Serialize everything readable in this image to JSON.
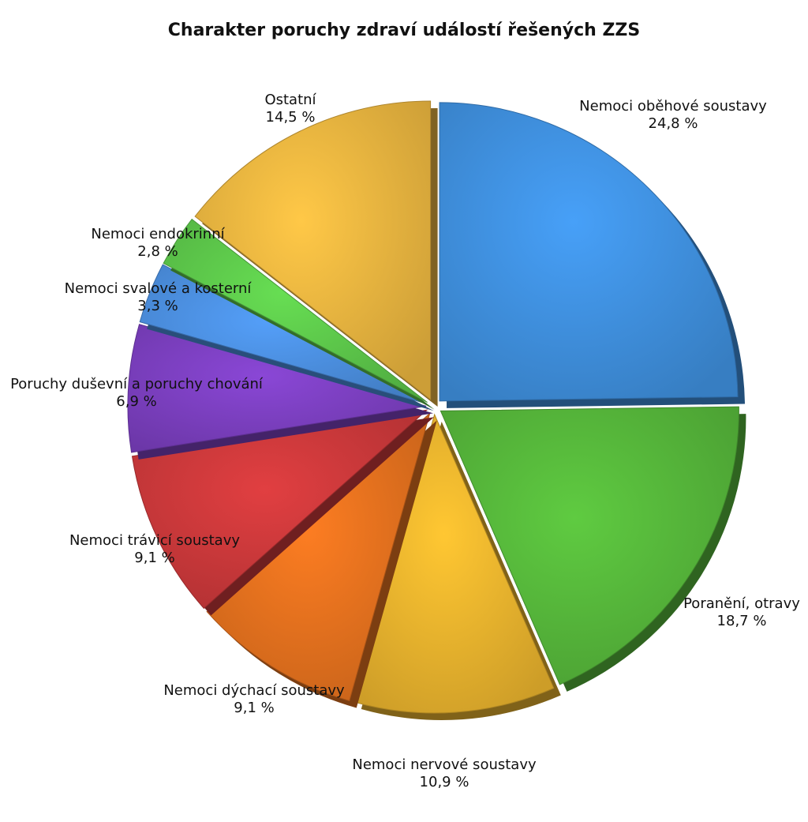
{
  "chart_data": {
    "type": "pie",
    "title": "Charakter poruchy zdraví událostí řešených ZZS",
    "slices": [
      {
        "label": "Nemoci oběhové soustavy",
        "value": 24.8,
        "value_label": "24,8 %",
        "color": "#3f8fdd"
      },
      {
        "label": "Poranění, otravy",
        "value": 18.7,
        "value_label": "18,7 %",
        "color": "#55b53a"
      },
      {
        "label": "Nemoci nervové soustavy",
        "value": 10.9,
        "value_label": "10,9 %",
        "color": "#e9b22d"
      },
      {
        "label": "Nemoci dýchací soustavy",
        "value": 9.1,
        "value_label": "9,1 %",
        "color": "#e2701e"
      },
      {
        "label": "Nemoci trávicí soustavy",
        "value": 9.1,
        "value_label": "9,1 %",
        "color": "#c9383a"
      },
      {
        "label": "Poruchy duševní a poruchy chování",
        "value": 6.9,
        "value_label": "6,9 %",
        "color": "#7b3fbf"
      },
      {
        "label": "Nemoci svalové a kosterní",
        "value": 3.3,
        "value_label": "3,3 %",
        "color": "#4b8ede"
      },
      {
        "label": "Nemoci endokrinní",
        "value": 2.8,
        "value_label": "2,8 %",
        "color": "#5cc64a"
      },
      {
        "label": "Ostatní",
        "value": 14.5,
        "value_label": "14,5 %",
        "color": "#e8b33f"
      }
    ],
    "start_angle": "12 o'clock",
    "direction": "clockwise",
    "legend": "none",
    "labels": "outside"
  }
}
